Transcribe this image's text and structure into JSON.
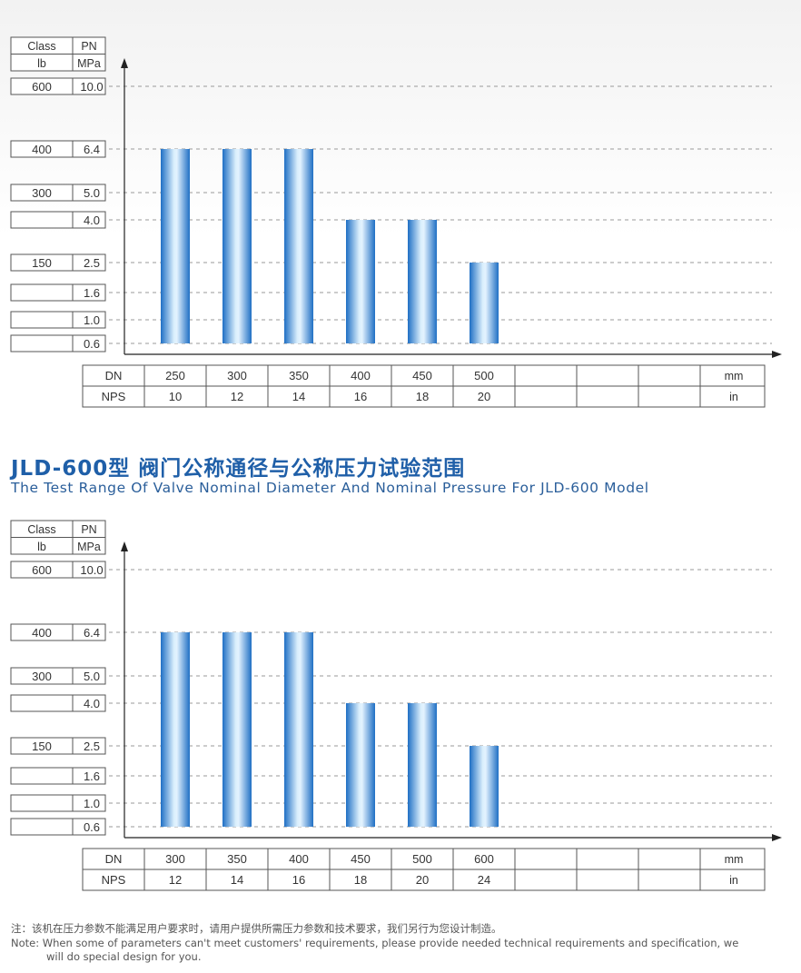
{
  "chart_data": [
    {
      "type": "bar",
      "header": {
        "class_label": "Class",
        "pn_label": "PN",
        "lb_label": "lb",
        "mpa_label": "MPa"
      },
      "y_levels": [
        {
          "class": "600",
          "pn": "10.0",
          "value": 10.0
        },
        {
          "class": "400",
          "pn": "6.4",
          "value": 6.4
        },
        {
          "class": "300",
          "pn": "5.0",
          "value": 5.0
        },
        {
          "class": "",
          "pn": "4.0",
          "value": 4.0
        },
        {
          "class": "150",
          "pn": "2.5",
          "value": 2.5
        },
        {
          "class": "",
          "pn": "1.6",
          "value": 1.6
        },
        {
          "class": "",
          "pn": "1.0",
          "value": 1.0
        },
        {
          "class": "",
          "pn": "0.6",
          "value": 0.6
        }
      ],
      "categories_dn": [
        "250",
        "300",
        "350",
        "400",
        "450",
        "500",
        "",
        "",
        ""
      ],
      "categories_nps": [
        "10",
        "12",
        "14",
        "16",
        "18",
        "20",
        "",
        "",
        ""
      ],
      "values": [
        6.4,
        6.4,
        6.4,
        4.0,
        4.0,
        2.5
      ],
      "ymin": 0.6,
      "row_labels": {
        "dn": "DN",
        "nps": "NPS",
        "dn_unit": "mm",
        "nps_unit": "in"
      }
    },
    {
      "type": "bar",
      "header": {
        "class_label": "Class",
        "pn_label": "PN",
        "lb_label": "lb",
        "mpa_label": "MPa"
      },
      "y_levels": [
        {
          "class": "600",
          "pn": "10.0",
          "value": 10.0
        },
        {
          "class": "400",
          "pn": "6.4",
          "value": 6.4
        },
        {
          "class": "300",
          "pn": "5.0",
          "value": 5.0
        },
        {
          "class": "",
          "pn": "4.0",
          "value": 4.0
        },
        {
          "class": "150",
          "pn": "2.5",
          "value": 2.5
        },
        {
          "class": "",
          "pn": "1.6",
          "value": 1.6
        },
        {
          "class": "",
          "pn": "1.0",
          "value": 1.0
        },
        {
          "class": "",
          "pn": "0.6",
          "value": 0.6
        }
      ],
      "categories_dn": [
        "300",
        "350",
        "400",
        "450",
        "500",
        "600",
        "",
        "",
        ""
      ],
      "categories_nps": [
        "12",
        "14",
        "16",
        "18",
        "20",
        "24",
        "",
        "",
        ""
      ],
      "values": [
        6.4,
        6.4,
        6.4,
        4.0,
        4.0,
        2.5
      ],
      "ymin": 0.6,
      "row_labels": {
        "dn": "DN",
        "nps": "NPS",
        "dn_unit": "mm",
        "nps_unit": "in"
      }
    }
  ],
  "heading": {
    "cn": "JLD-600型 阀门公称通径与公称压力试验范围",
    "en": "The Test Range Of Valve Nominal Diameter And Nominal Pressure For JLD-600 Model"
  },
  "notes": {
    "cn": "注：该机在压力参数不能满足用户要求时，请用户提供所需压力参数和技术要求，我们另行为您设计制造。",
    "en1": "Note: When some of parameters can't meet customers' requirements, please provide needed technical requirements and specification, we",
    "en2": "will do special design for you."
  },
  "colors": {
    "bar_dark": "#1f6fc4",
    "bar_light": "#d9eefc",
    "heading": "#1f5fa8",
    "grid": "#9a9a9a",
    "table_border": "#555555"
  }
}
